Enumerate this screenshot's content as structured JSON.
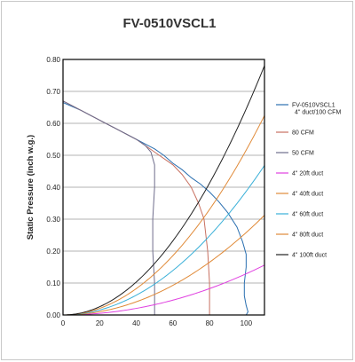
{
  "chart_data": {
    "type": "line",
    "title": "FV-0510VSCL1",
    "xlabel": "",
    "ylabel": "Static Pressure (inch w.g.)",
    "xlim": [
      0,
      110
    ],
    "ylim": [
      0,
      0.8
    ],
    "x_ticks": [
      "0",
      "20",
      "40",
      "60",
      "80",
      "100"
    ],
    "y_ticks": [
      "0.00",
      "0.10",
      "0.20",
      "0.30",
      "0.40",
      "0.50",
      "0.60",
      "0.70",
      "0.80"
    ],
    "grid": "horizontal",
    "legend_position": "right",
    "series": [
      {
        "name": "FV-0510VSCL1 4\" duct/100 CFM",
        "color": "#2a6fb0",
        "x": [
          0,
          10,
          20,
          30,
          40,
          45,
          50,
          55,
          60,
          65,
          70,
          75,
          80,
          85,
          90,
          95,
          98,
          100,
          100,
          99,
          99,
          100,
          101,
          100
        ],
        "y": [
          0.665,
          0.64,
          0.61,
          0.58,
          0.55,
          0.535,
          0.52,
          0.5,
          0.475,
          0.455,
          0.43,
          0.41,
          0.385,
          0.355,
          0.32,
          0.275,
          0.23,
          0.19,
          0.15,
          0.1,
          0.06,
          0.03,
          0.01,
          0.0
        ]
      },
      {
        "name": "80 CFM",
        "color": "#c87060",
        "x": [
          0,
          10,
          20,
          30,
          40,
          50,
          60,
          65,
          70,
          74,
          77,
          78,
          79,
          80,
          80
        ],
        "y": [
          0.67,
          0.64,
          0.61,
          0.58,
          0.55,
          0.51,
          0.47,
          0.44,
          0.4,
          0.35,
          0.3,
          0.25,
          0.2,
          0.1,
          0.0
        ]
      },
      {
        "name": "50 CFM",
        "color": "#6f6d8c",
        "x": [
          0,
          10,
          20,
          30,
          40,
          45,
          48,
          50,
          50,
          49,
          49,
          50,
          50
        ],
        "y": [
          0.67,
          0.64,
          0.61,
          0.58,
          0.55,
          0.53,
          0.51,
          0.47,
          0.4,
          0.3,
          0.2,
          0.1,
          0.0
        ]
      },
      {
        "name": "4\" 20ft duct",
        "color": "#e040e0",
        "k": 1.29e-05
      },
      {
        "name": "4\" 40ft duct",
        "color": "#e08a38",
        "k": 2.58e-05
      },
      {
        "name": "4\" 60ft duct",
        "color": "#3ab0d8",
        "k": 3.87e-05
      },
      {
        "name": "4\" 80ft duct",
        "color": "#e08a38",
        "k": 5.16e-05
      },
      {
        "name": "4\" 100ft duct",
        "color": "#222222",
        "k": 6.45e-05
      }
    ]
  }
}
